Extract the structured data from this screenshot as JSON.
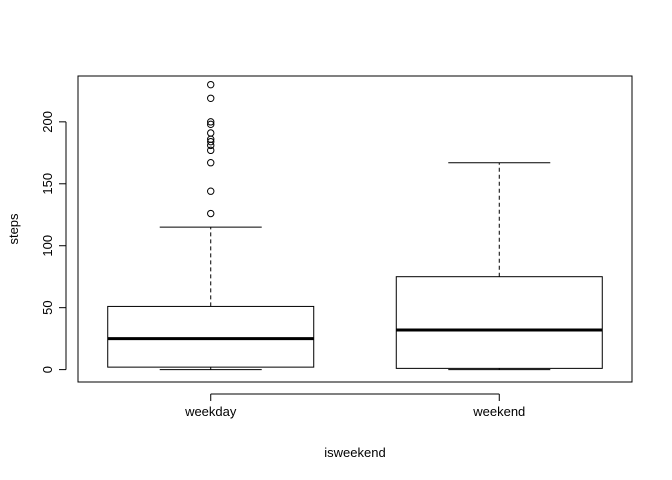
{
  "chart_data": {
    "type": "boxplot",
    "title": "",
    "xlabel": "isweekend",
    "ylabel": "steps",
    "ylim": [
      -10,
      237
    ],
    "yticks": [
      0,
      50,
      100,
      150,
      200
    ],
    "categories": [
      "weekday",
      "weekend"
    ],
    "boxes": [
      {
        "name": "weekday",
        "whisker_low": 0,
        "q1": 2,
        "median": 25,
        "q3": 51,
        "whisker_high": 115,
        "outliers": [
          126,
          144,
          167,
          177,
          181,
          184,
          186,
          191,
          198,
          200,
          219,
          230
        ]
      },
      {
        "name": "weekend",
        "whisker_low": 0,
        "q1": 1,
        "median": 32,
        "q3": 75,
        "whisker_high": 167,
        "outliers": []
      }
    ]
  }
}
